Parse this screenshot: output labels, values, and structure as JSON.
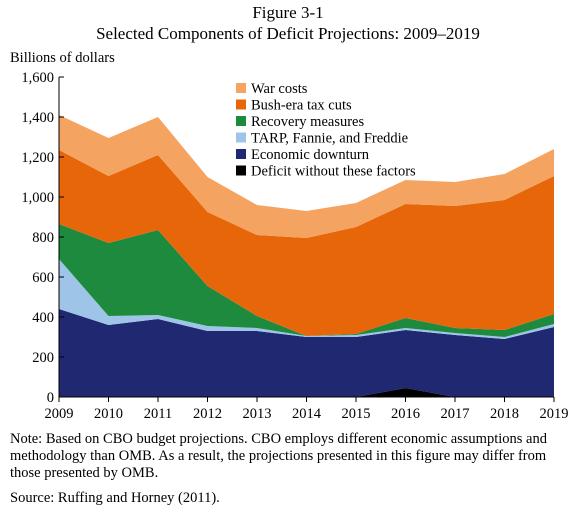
{
  "figure": {
    "number": "Figure 3-1",
    "title": "Selected Components of Deficit Projections: 2009–2019"
  },
  "chart_data": {
    "type": "area",
    "stacked": true,
    "ylabel": "Billions of dollars",
    "xlabel": "",
    "ylim": [
      0,
      1600
    ],
    "yticks": [
      0,
      200,
      400,
      600,
      800,
      1000,
      1200,
      1400,
      1600
    ],
    "ytick_labels": [
      "0",
      "200",
      "400",
      "600",
      "800",
      "1,000",
      "1,200",
      "1,400",
      "1,600"
    ],
    "x": [
      2009,
      2010,
      2011,
      2012,
      2013,
      2014,
      2015,
      2016,
      2017,
      2018,
      2019
    ],
    "xtick_labels": [
      "2009",
      "2010",
      "2011",
      "2012",
      "2013",
      "2014",
      "2015",
      "2016",
      "2017",
      "2018",
      "2019"
    ],
    "grid": false,
    "legend_position": "top-right",
    "series": [
      {
        "name": "Deficit without these factors",
        "color": "#000000",
        "values": [
          0,
          0,
          0,
          0,
          0,
          0,
          0,
          45,
          0,
          0,
          0
        ]
      },
      {
        "name": "Economic downturn",
        "color": "#1f2870",
        "values": [
          440,
          360,
          390,
          330,
          330,
          300,
          300,
          290,
          310,
          290,
          350
        ]
      },
      {
        "name": "TARP, Fannie, and Freddie",
        "color": "#9ec5e8",
        "values": [
          250,
          45,
          20,
          25,
          15,
          5,
          10,
          10,
          10,
          10,
          15
        ]
      },
      {
        "name": "Recovery measures",
        "color": "#1e8a3d",
        "values": [
          175,
          365,
          425,
          200,
          60,
          0,
          5,
          50,
          25,
          35,
          50
        ]
      },
      {
        "name": "Bush-era tax cuts",
        "color": "#e8660a",
        "values": [
          370,
          335,
          375,
          370,
          405,
          490,
          535,
          570,
          610,
          650,
          690
        ]
      },
      {
        "name": "War costs",
        "color": "#f4a460",
        "values": [
          175,
          190,
          190,
          175,
          150,
          135,
          120,
          120,
          120,
          130,
          135
        ]
      }
    ]
  },
  "note": "Note: Based on CBO budget projections. CBO employs different economic assumptions and methodology than OMB. As a result, the projections presented in this figure may differ from those presented by OMB.",
  "source": "Source: Ruffing and Horney (2011)."
}
